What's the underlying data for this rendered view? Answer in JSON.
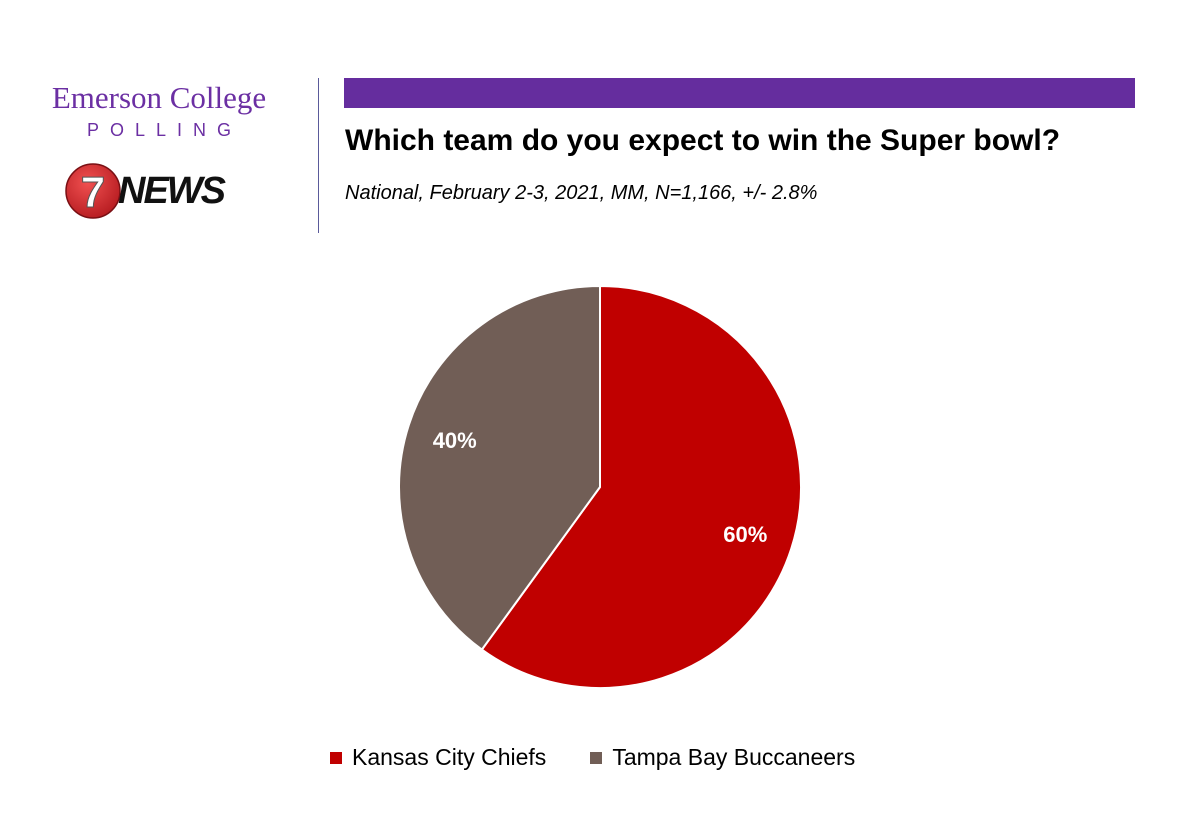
{
  "branding": {
    "emerson_name": "Emerson College",
    "emerson_sub": "POLLING",
    "news_number": "7",
    "news_text": "NEWS",
    "colors": {
      "emerson_purple": "#6b2fa3",
      "header_bar": "#652d9e",
      "news_red": "#d3262b"
    }
  },
  "chart_data": {
    "type": "pie",
    "title": "Which team do you expect to win the Super bowl?",
    "subtitle": "National, February 2-3, 2021, MM, N=1,166, +/- 2.8%",
    "categories": [
      "Kansas City Chiefs",
      "Tampa Bay Buccaneers"
    ],
    "values": [
      60,
      40
    ],
    "data_labels": [
      "60%",
      "40%"
    ],
    "colors": [
      "#c00000",
      "#715e56"
    ],
    "start_angle_deg": 0,
    "direction": "clockwise",
    "legend": "bottom"
  }
}
